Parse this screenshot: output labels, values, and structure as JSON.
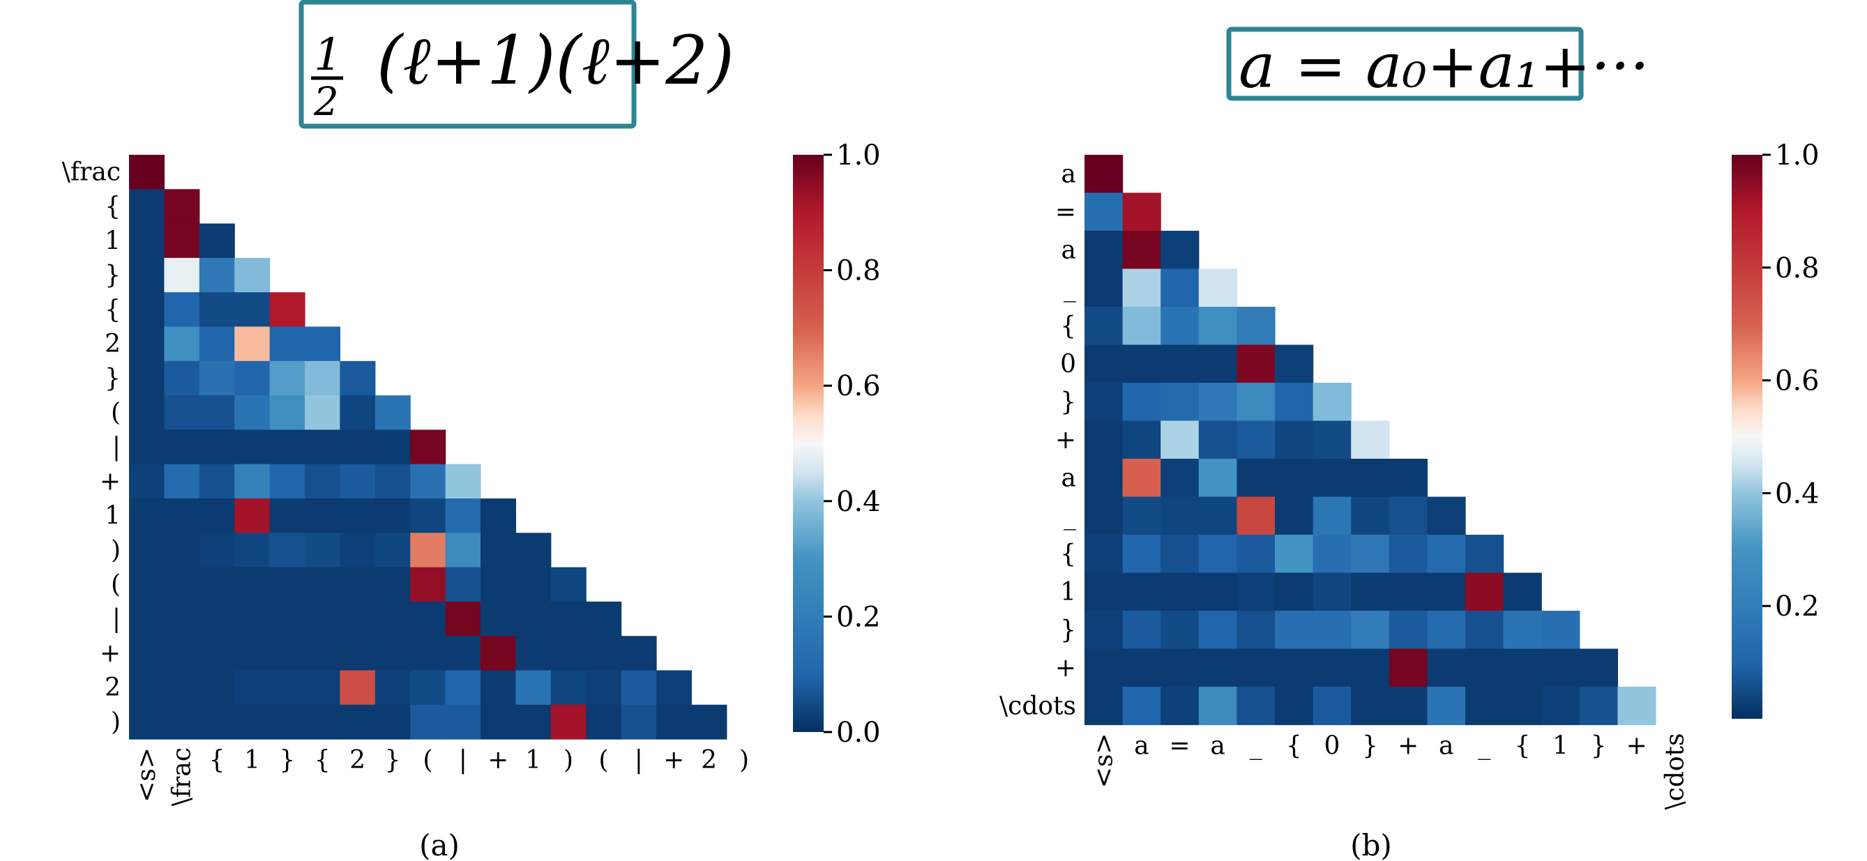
{
  "figure": {
    "captions": [
      "(a)",
      "(b)"
    ],
    "images": [
      {
        "handwritten_text": "1/2 (l+1)(l+2)"
      },
      {
        "handwritten_text": "a = a₀ + a₁ + ···"
      }
    ],
    "colormap": {
      "name": "RdBu_r",
      "low": "#053061",
      "mid": "#f7f7f7",
      "high": "#67001f"
    }
  },
  "chart_data": [
    {
      "type": "heatmap",
      "title": "",
      "xlabel": "",
      "ylabel": "",
      "mask": "upper-triangle",
      "row_labels": [
        "\\frac",
        "{",
        "1",
        "}",
        "{",
        "2",
        "}",
        "(",
        "|",
        "+",
        "1",
        ")",
        "(",
        "|",
        "+",
        "2",
        ")"
      ],
      "col_labels": [
        "<s>",
        "\\frac",
        "{",
        "1",
        "}",
        "{",
        "2",
        "}",
        "(",
        "|",
        "+",
        "1",
        ")",
        "(",
        "|",
        "+",
        "2",
        ")"
      ],
      "colorbar": {
        "ticks": [
          "0.0",
          "0.2",
          "0.4",
          "0.6",
          "0.8",
          "1.0"
        ],
        "range": [
          0,
          1
        ]
      },
      "values": [
        [
          1.0
        ],
        [
          0.02,
          0.98
        ],
        [
          0.02,
          0.98,
          0.02
        ],
        [
          0.02,
          0.48,
          0.18,
          0.38
        ],
        [
          0.02,
          0.1,
          0.05,
          0.05,
          0.9
        ],
        [
          0.02,
          0.28,
          0.1,
          0.58,
          0.1,
          0.1
        ],
        [
          0.02,
          0.08,
          0.15,
          0.1,
          0.32,
          0.38,
          0.08
        ],
        [
          0.02,
          0.06,
          0.06,
          0.16,
          0.28,
          0.4,
          0.04,
          0.16
        ],
        [
          0.02,
          0.02,
          0.02,
          0.02,
          0.02,
          0.02,
          0.02,
          0.02,
          0.98
        ],
        [
          0.03,
          0.12,
          0.06,
          0.22,
          0.1,
          0.06,
          0.08,
          0.06,
          0.15,
          0.4
        ],
        [
          0.02,
          0.02,
          0.02,
          0.92,
          0.02,
          0.02,
          0.02,
          0.02,
          0.04,
          0.12,
          0.02
        ],
        [
          0.02,
          0.02,
          0.03,
          0.04,
          0.06,
          0.05,
          0.03,
          0.04,
          0.66,
          0.26,
          0.02,
          0.02
        ],
        [
          0.02,
          0.02,
          0.02,
          0.02,
          0.02,
          0.02,
          0.02,
          0.02,
          0.94,
          0.06,
          0.02,
          0.02,
          0.04
        ],
        [
          0.02,
          0.02,
          0.02,
          0.02,
          0.02,
          0.02,
          0.02,
          0.02,
          0.02,
          0.98,
          0.02,
          0.02,
          0.02,
          0.02
        ],
        [
          0.02,
          0.02,
          0.02,
          0.02,
          0.02,
          0.02,
          0.02,
          0.02,
          0.02,
          0.02,
          0.98,
          0.02,
          0.02,
          0.02,
          0.02
        ],
        [
          0.02,
          0.02,
          0.02,
          0.03,
          0.03,
          0.03,
          0.75,
          0.03,
          0.05,
          0.1,
          0.02,
          0.16,
          0.04,
          0.03,
          0.08,
          0.03
        ],
        [
          0.02,
          0.02,
          0.02,
          0.02,
          0.02,
          0.02,
          0.02,
          0.02,
          0.08,
          0.08,
          0.02,
          0.02,
          0.92,
          0.02,
          0.06,
          0.02,
          0.02
        ]
      ]
    },
    {
      "type": "heatmap",
      "title": "",
      "xlabel": "",
      "ylabel": "",
      "mask": "upper-triangle",
      "row_labels": [
        "a",
        "=",
        "a",
        "_",
        "{",
        "0",
        "}",
        "+",
        "a",
        "_",
        "{",
        "1",
        "}",
        "+",
        "\\cdots"
      ],
      "col_labels": [
        "<s>",
        "a",
        "=",
        "a",
        "_",
        "{",
        "0",
        "}",
        "+",
        "a",
        "_",
        "{",
        "1",
        "}",
        "+",
        "\\cdots"
      ],
      "colorbar": {
        "ticks": [
          "0.2",
          "0.4",
          "0.6",
          "0.8",
          "1.0"
        ],
        "range": [
          0,
          1
        ]
      },
      "values": [
        [
          1.0
        ],
        [
          0.14,
          0.92
        ],
        [
          0.02,
          0.98,
          0.03
        ],
        [
          0.02,
          0.42,
          0.1,
          0.45
        ],
        [
          0.05,
          0.38,
          0.16,
          0.28,
          0.2
        ],
        [
          0.02,
          0.02,
          0.02,
          0.02,
          0.97,
          0.03
        ],
        [
          0.03,
          0.1,
          0.12,
          0.18,
          0.26,
          0.1,
          0.38
        ],
        [
          0.02,
          0.04,
          0.42,
          0.06,
          0.08,
          0.04,
          0.05,
          0.45
        ],
        [
          0.02,
          0.7,
          0.03,
          0.3,
          0.02,
          0.02,
          0.02,
          0.02,
          0.02
        ],
        [
          0.02,
          0.05,
          0.04,
          0.04,
          0.77,
          0.02,
          0.17,
          0.04,
          0.06,
          0.03
        ],
        [
          0.03,
          0.1,
          0.06,
          0.1,
          0.08,
          0.3,
          0.14,
          0.18,
          0.08,
          0.12,
          0.06
        ],
        [
          0.02,
          0.02,
          0.02,
          0.02,
          0.03,
          0.02,
          0.04,
          0.02,
          0.02,
          0.02,
          0.95,
          0.02
        ],
        [
          0.03,
          0.08,
          0.05,
          0.1,
          0.06,
          0.14,
          0.14,
          0.2,
          0.08,
          0.12,
          0.06,
          0.16,
          0.14
        ],
        [
          0.02,
          0.02,
          0.02,
          0.02,
          0.02,
          0.02,
          0.02,
          0.02,
          0.98,
          0.02,
          0.02,
          0.02,
          0.02,
          0.02
        ],
        [
          0.02,
          0.1,
          0.03,
          0.26,
          0.06,
          0.02,
          0.08,
          0.02,
          0.02,
          0.16,
          0.02,
          0.02,
          0.03,
          0.06,
          0.4
        ]
      ]
    }
  ]
}
